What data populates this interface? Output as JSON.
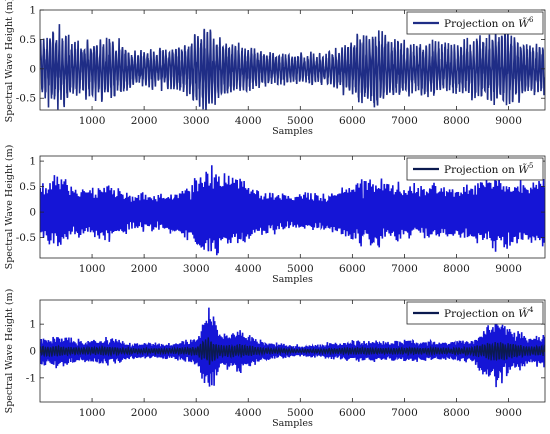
{
  "chart_data": [
    {
      "type": "line",
      "xlabel": "Samples",
      "ylabel": "Spectral Wave Height (m)",
      "xlim": [
        0,
        9700
      ],
      "ylim": [
        -0.7,
        1.0
      ],
      "yticks": [
        -0.5,
        0,
        0.5,
        1
      ],
      "ytick_labels": [
        "-0.5",
        "0",
        "0.5",
        "1"
      ],
      "xticks": [
        1000,
        2000,
        3000,
        4000,
        5000,
        6000,
        7000,
        8000,
        9000
      ],
      "xtick_labels": [
        "1000",
        "2000",
        "3000",
        "4000",
        "5000",
        "6000",
        "7000",
        "8000",
        "9000"
      ],
      "legend_position": "top-right",
      "series": [
        {
          "name": "Projection on W̃⁶",
          "legend_main": "Projection on ",
          "legend_symbol": "W̃",
          "legend_sup": "6",
          "color": "#1f2d86",
          "envelope": [
            [
              0,
              0.5
            ],
            [
              300,
              0.7
            ],
            [
              700,
              0.45
            ],
            [
              1000,
              0.5
            ],
            [
              1400,
              0.55
            ],
            [
              1800,
              0.3
            ],
            [
              2400,
              0.35
            ],
            [
              2800,
              0.45
            ],
            [
              3200,
              0.75
            ],
            [
              3400,
              0.55
            ],
            [
              3700,
              0.45
            ],
            [
              4300,
              0.3
            ],
            [
              5000,
              0.25
            ],
            [
              5600,
              0.3
            ],
            [
              6200,
              0.6
            ],
            [
              6400,
              0.7
            ],
            [
              7000,
              0.45
            ],
            [
              7500,
              0.45
            ],
            [
              8000,
              0.45
            ],
            [
              8500,
              0.55
            ],
            [
              9000,
              0.65
            ],
            [
              9400,
              0.45
            ],
            [
              9700,
              0.5
            ]
          ]
        }
      ]
    },
    {
      "type": "line",
      "xlabel": "Samples",
      "ylabel": "Spectral Wave Height (m)",
      "xlim": [
        0,
        9700
      ],
      "ylim": [
        -0.9,
        1.1
      ],
      "yticks": [
        -0.5,
        0,
        0.5,
        1
      ],
      "ytick_labels": [
        "-0.5",
        "0",
        "0.5",
        "1"
      ],
      "xticks": [
        1000,
        2000,
        3000,
        4000,
        5000,
        6000,
        7000,
        8000,
        9000
      ],
      "xtick_labels": [
        "1000",
        "2000",
        "3000",
        "4000",
        "5000",
        "6000",
        "7000",
        "8000",
        "9000"
      ],
      "legend_position": "top-right",
      "series": [
        {
          "name": "Projection on W̃⁵",
          "legend_main": "Projection on ",
          "legend_symbol": "W̃",
          "legend_sup": "5",
          "color": "#1515d6",
          "envelope": [
            [
              0,
              0.6
            ],
            [
              400,
              0.7
            ],
            [
              800,
              0.45
            ],
            [
              1300,
              0.55
            ],
            [
              1800,
              0.35
            ],
            [
              2300,
              0.35
            ],
            [
              2800,
              0.5
            ],
            [
              3200,
              0.85
            ],
            [
              3700,
              0.75
            ],
            [
              4200,
              0.45
            ],
            [
              4800,
              0.35
            ],
            [
              5400,
              0.35
            ],
            [
              6000,
              0.55
            ],
            [
              6400,
              0.7
            ],
            [
              7000,
              0.5
            ],
            [
              7600,
              0.55
            ],
            [
              8200,
              0.5
            ],
            [
              8800,
              0.75
            ],
            [
              9200,
              0.6
            ],
            [
              9700,
              0.65
            ]
          ]
        }
      ]
    },
    {
      "type": "line",
      "xlabel": "Samples",
      "ylabel": "Spectral Wave Height (m)",
      "xlim": [
        0,
        9700
      ],
      "ylim": [
        -1.9,
        1.9
      ],
      "yticks": [
        -1,
        0,
        1
      ],
      "ytick_labels": [
        "-1",
        "0",
        "1"
      ],
      "xticks": [
        1000,
        2000,
        3000,
        4000,
        5000,
        6000,
        7000,
        8000,
        9000
      ],
      "xtick_labels": [
        "1000",
        "2000",
        "3000",
        "4000",
        "5000",
        "6000",
        "7000",
        "8000",
        "9000"
      ],
      "legend_position": "top-right",
      "series": [
        {
          "name": "Projection on W̃⁴",
          "legend_main": "Projection on ",
          "legend_symbol": "W̃",
          "legend_sup": "4",
          "color": "#1515d6",
          "envelope": [
            [
              0,
              0.5
            ],
            [
              300,
              0.6
            ],
            [
              800,
              0.4
            ],
            [
              1300,
              0.5
            ],
            [
              1800,
              0.3
            ],
            [
              2500,
              0.3
            ],
            [
              3000,
              0.5
            ],
            [
              3250,
              1.6
            ],
            [
              3500,
              0.6
            ],
            [
              3800,
              0.8
            ],
            [
              4300,
              0.35
            ],
            [
              5000,
              0.2
            ],
            [
              5600,
              0.3
            ],
            [
              6100,
              0.4
            ],
            [
              6600,
              0.35
            ],
            [
              7200,
              0.4
            ],
            [
              7800,
              0.35
            ],
            [
              8300,
              0.45
            ],
            [
              8800,
              1.3
            ],
            [
              9000,
              0.9
            ],
            [
              9400,
              0.5
            ],
            [
              9700,
              0.6
            ]
          ]
        }
      ]
    }
  ]
}
